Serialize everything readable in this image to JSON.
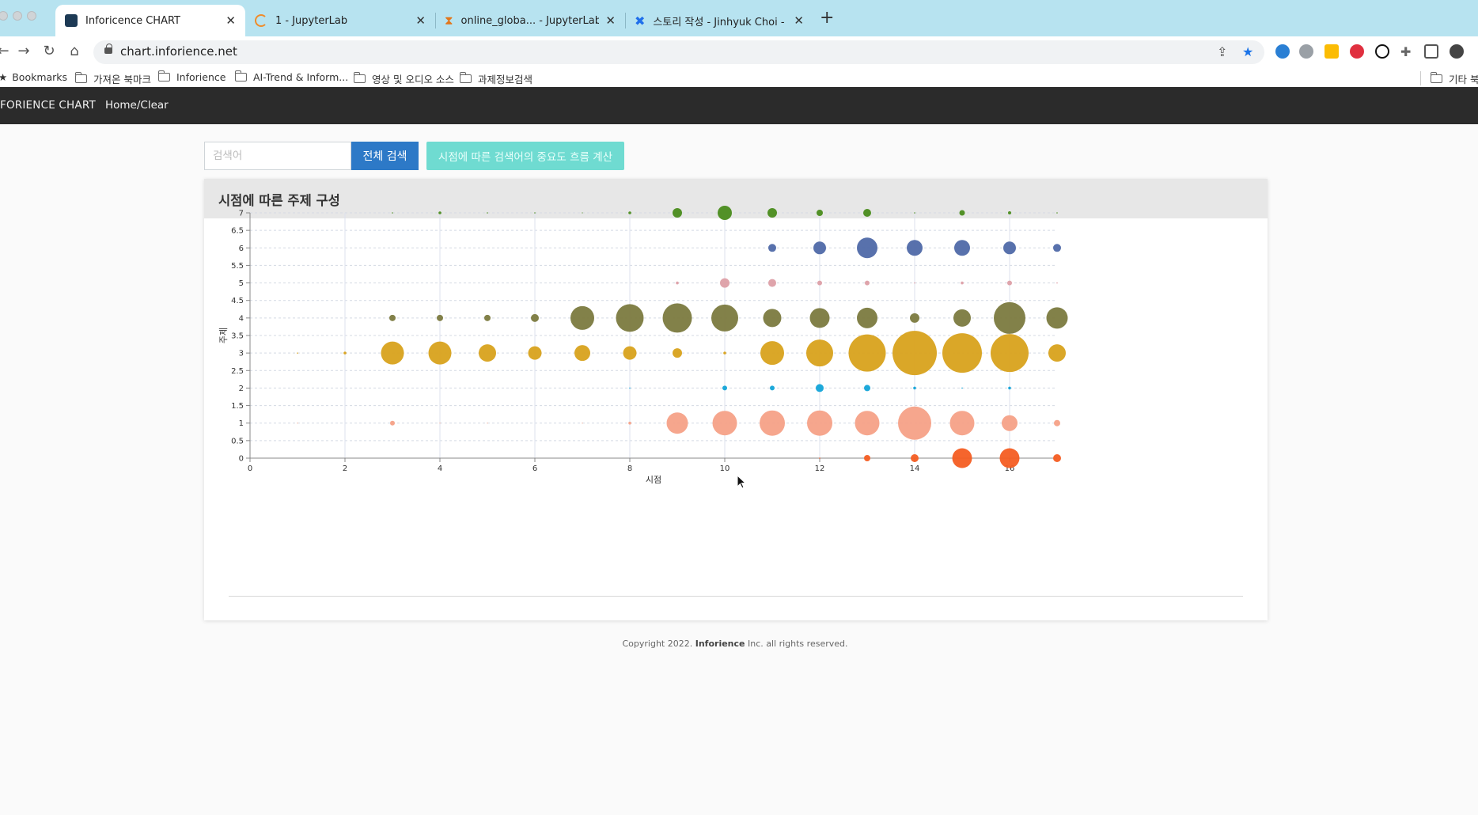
{
  "browser": {
    "tabs": [
      {
        "title": "Inforicence CHART",
        "active": true
      },
      {
        "title": "1 - JupyterLab"
      },
      {
        "title": "online_globa... - JupyterLab"
      },
      {
        "title": "스토리 작성 - Jinhyuk Choi - Con"
      }
    ],
    "url": "chart.inforience.net",
    "bookmarks": [
      "Bookmarks",
      "가져온 북마크",
      "Inforience",
      "AI-Trend & Inform...",
      "영상 및 오디오 소스",
      "과제정보검색",
      "기타 북마"
    ]
  },
  "app": {
    "brand": "FORIENCE CHART",
    "nav_home": "Home/Clear",
    "search_placeholder": "검색어",
    "search_button": "전체 검색",
    "flow_button": "시점에 따른 검색어의 중요도 흐름 계산",
    "card_title": "시점에 따른 주제 구성",
    "footer_pre": "Copyright 2022.",
    "footer_brand": "Inforience",
    "footer_post": "Inc. all rights reserved."
  },
  "chart_data": {
    "type": "scatter",
    "xlabel": "시점",
    "ylabel": "주제",
    "xlim": [
      0,
      17
    ],
    "ylim": [
      0,
      7
    ],
    "xticks": [
      0,
      2,
      4,
      6,
      8,
      10,
      12,
      14,
      16
    ],
    "yticks": [
      0,
      0.5,
      1,
      1.5,
      2,
      2.5,
      3,
      3.5,
      4,
      4.5,
      5,
      5.5,
      6,
      6.5,
      7
    ],
    "grid": true,
    "series": [
      {
        "y": 7,
        "color": "#4a8c1c",
        "x": [
          3,
          4,
          5,
          6,
          7,
          8,
          9,
          10,
          11,
          12,
          13,
          14,
          15,
          16,
          17
        ],
        "r": [
          0.8,
          1.8,
          0.8,
          0.8,
          0.6,
          1.8,
          6,
          9,
          6,
          4,
          5,
          0.8,
          3.5,
          2,
          0.8
        ]
      },
      {
        "y": 6,
        "color": "#4f69a8",
        "x": [
          11,
          12,
          13,
          14,
          15,
          16,
          17
        ],
        "r": [
          5,
          8,
          13,
          10,
          10,
          8,
          5
        ]
      },
      {
        "y": 5,
        "color": "#dd9fa6",
        "x": [
          9,
          10,
          11,
          12,
          13,
          14,
          15,
          16,
          17
        ],
        "r": [
          1.8,
          6,
          5,
          3,
          3,
          0.8,
          1.8,
          3,
          0.8
        ]
      },
      {
        "y": 4,
        "color": "#7b7a3f",
        "x": [
          3,
          4,
          5,
          6,
          7,
          8,
          9,
          10,
          11,
          12,
          13,
          14,
          15,
          16,
          17
        ],
        "r": [
          4,
          4,
          4,
          5,
          15,
          17.5,
          18.5,
          17,
          11.5,
          12.5,
          13,
          6,
          11,
          20,
          13.5
        ]
      },
      {
        "y": 3,
        "color": "#d8a21c",
        "x": [
          1,
          2,
          3,
          4,
          5,
          6,
          7,
          8,
          9,
          10,
          11,
          12,
          13,
          14,
          15,
          16,
          17
        ],
        "r": [
          0.8,
          1.8,
          14.5,
          14.5,
          11,
          8.5,
          10,
          8.5,
          6,
          1.8,
          15,
          17,
          23.5,
          28,
          25,
          24,
          11
        ]
      },
      {
        "y": 2,
        "color": "#12a4d8",
        "x": [
          8,
          10,
          11,
          12,
          13,
          14,
          15,
          16
        ],
        "r": [
          0.8,
          3,
          3,
          5,
          4,
          1.8,
          0.8,
          1.8
        ]
      },
      {
        "y": 1,
        "color": "#f6a187",
        "x": [
          1,
          3,
          4,
          5,
          7,
          8,
          9,
          10,
          11,
          12,
          13,
          14,
          15,
          16,
          17
        ],
        "r": [
          0.6,
          3,
          0.6,
          0.6,
          0.6,
          1.8,
          13.5,
          15.5,
          16,
          16,
          15.5,
          21,
          15.5,
          10,
          4
        ]
      },
      {
        "y": 0,
        "color": "#f45d22",
        "x": [
          12,
          13,
          14,
          15,
          16,
          17
        ],
        "r": [
          0.8,
          4,
          5,
          12.5,
          12.5,
          5
        ]
      }
    ]
  }
}
